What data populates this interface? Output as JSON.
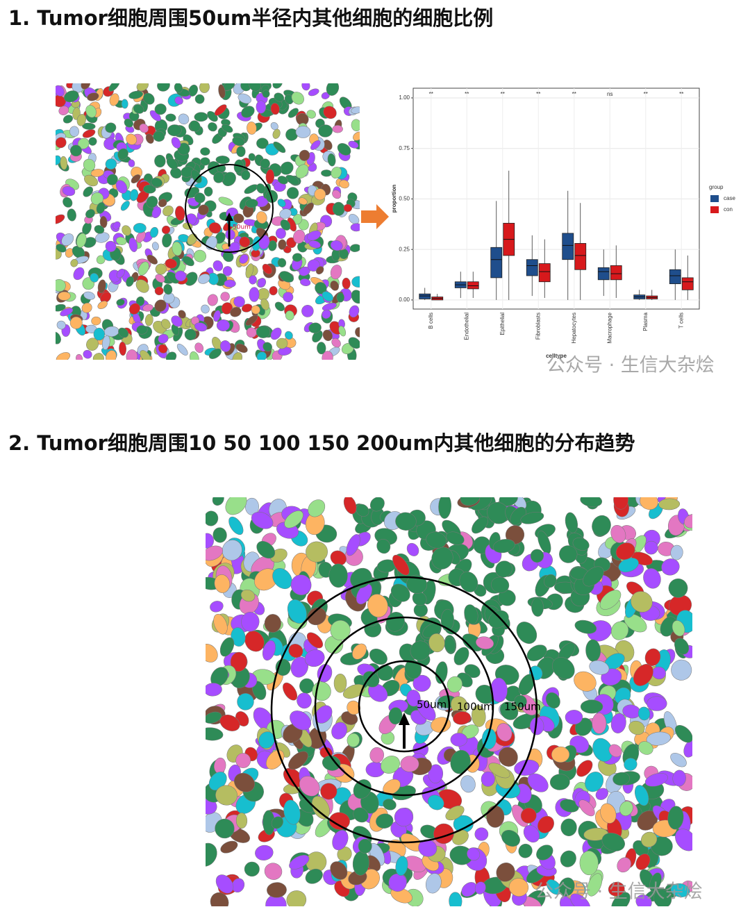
{
  "headings": [
    "1. Tumor细胞周围50um半径内其他细胞的细胞比例",
    "2. Tumor细胞周围10 50 100 150 200um内其他细胞的分布趋势"
  ],
  "image_labels": {
    "first": "50um",
    "rings": [
      "50um",
      "100um",
      "150um"
    ]
  },
  "watermarks": [
    "公众号 · 生信大杂烩",
    "公众号 · 生信大杂烩"
  ],
  "chart_data": {
    "type": "box",
    "y_label": "proportion",
    "x_label": "celltype",
    "legend_title": "group",
    "categories": [
      "B cells",
      "Endothelial",
      "Epithelial",
      "Fibroblasts",
      "Hepatocytes",
      "Macrophage",
      "Plasma",
      "T cells"
    ],
    "significance": [
      "**",
      "**",
      "**",
      "**",
      "**",
      "ns",
      "**",
      "**"
    ],
    "ylim": [
      -0.045,
      1.048
    ],
    "yticks": [
      {
        "value": 1,
        "label": "1.00"
      },
      {
        "value": 0.75,
        "label": "0.75"
      },
      {
        "value": 0.5,
        "label": "0.50"
      },
      {
        "value": 0.25,
        "label": "0.25"
      },
      {
        "value": 0,
        "label": "0.00"
      }
    ],
    "series": [
      {
        "name": "case",
        "color": "#1f4e8c",
        "values": [
          {
            "min": 0,
            "q1": 0.005,
            "median": 0.02,
            "q3": 0.03,
            "max": 0.06
          },
          {
            "min": 0.01,
            "q1": 0.06,
            "median": 0.075,
            "q3": 0.09,
            "max": 0.14
          },
          {
            "min": 0,
            "q1": 0.11,
            "median": 0.2,
            "q3": 0.26,
            "max": 0.49
          },
          {
            "min": 0.02,
            "q1": 0.12,
            "median": 0.17,
            "q3": 0.2,
            "max": 0.32
          },
          {
            "min": 0,
            "q1": 0.2,
            "median": 0.27,
            "q3": 0.33,
            "max": 0.54
          },
          {
            "min": 0.02,
            "q1": 0.1,
            "median": 0.14,
            "q3": 0.16,
            "max": 0.25
          },
          {
            "min": 0,
            "q1": 0.005,
            "median": 0.015,
            "q3": 0.025,
            "max": 0.05
          },
          {
            "min": 0,
            "q1": 0.08,
            "median": 0.12,
            "q3": 0.15,
            "max": 0.25
          }
        ]
      },
      {
        "name": "con",
        "color": "#d7191c",
        "values": [
          {
            "min": 0,
            "q1": 0,
            "median": 0.008,
            "q3": 0.015,
            "max": 0.03
          },
          {
            "min": 0.01,
            "q1": 0.055,
            "median": 0.07,
            "q3": 0.09,
            "max": 0.14
          },
          {
            "min": 0,
            "q1": 0.22,
            "median": 0.3,
            "q3": 0.38,
            "max": 0.64
          },
          {
            "min": 0.01,
            "q1": 0.09,
            "median": 0.14,
            "q3": 0.18,
            "max": 0.3
          },
          {
            "min": 0,
            "q1": 0.15,
            "median": 0.22,
            "q3": 0.28,
            "max": 0.48
          },
          {
            "min": 0.01,
            "q1": 0.1,
            "median": 0.13,
            "q3": 0.17,
            "max": 0.27
          },
          {
            "min": 0,
            "q1": 0.005,
            "median": 0.012,
            "q3": 0.02,
            "max": 0.05
          },
          {
            "min": 0,
            "q1": 0.05,
            "median": 0.09,
            "q3": 0.11,
            "max": 0.22
          }
        ]
      }
    ]
  }
}
